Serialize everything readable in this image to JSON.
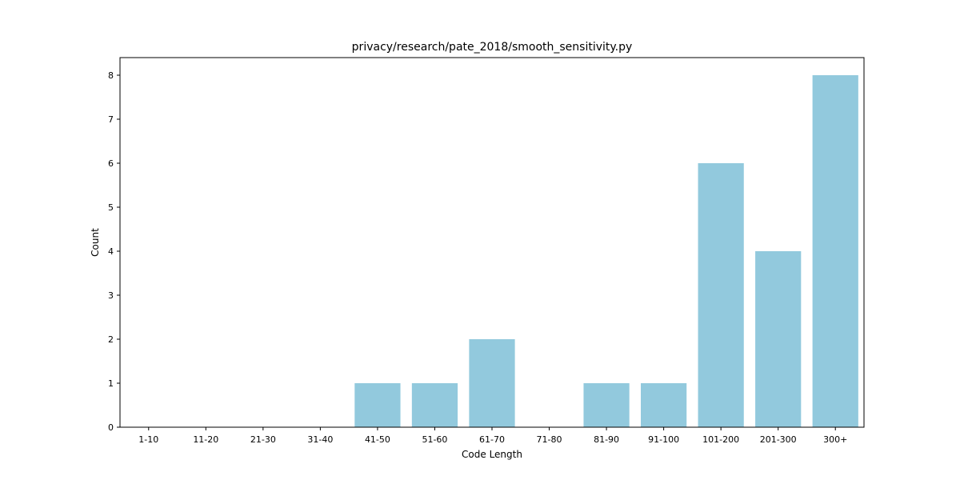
{
  "chart_data": {
    "type": "bar",
    "title": "privacy/research/pate_2018/smooth_sensitivity.py",
    "xlabel": "Code Length",
    "ylabel": "Count",
    "categories": [
      "1-10",
      "11-20",
      "21-30",
      "31-40",
      "41-50",
      "51-60",
      "61-70",
      "71-80",
      "81-90",
      "91-100",
      "101-200",
      "201-300",
      "300+"
    ],
    "values": [
      0,
      0,
      0,
      0,
      1,
      1,
      2,
      0,
      1,
      1,
      6,
      4,
      8
    ],
    "ylim": [
      0,
      8.4
    ],
    "yticks": [
      0,
      1,
      2,
      3,
      4,
      5,
      6,
      7,
      8
    ],
    "bar_color": "#92c9dd",
    "grid": false,
    "legend": "none"
  }
}
